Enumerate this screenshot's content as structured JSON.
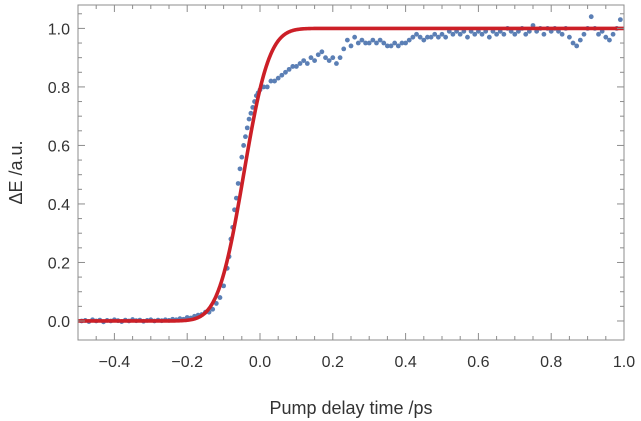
{
  "chart_data": {
    "type": "scatter",
    "title": "",
    "xlabel": "Pump delay time /ps",
    "ylabel": "ΔE /a.u.",
    "xlim": [
      -0.5,
      1.0
    ],
    "ylim": [
      -0.065,
      1.08
    ],
    "grid": false,
    "x_ticks": [
      -0.4,
      -0.2,
      0.0,
      0.2,
      0.4,
      0.6,
      0.8,
      1.0
    ],
    "x_tick_labels": [
      "−0.4",
      "−0.2",
      "0.0",
      "0.2",
      "0.4",
      "0.6",
      "0.8",
      "1.0"
    ],
    "y_ticks": [
      0.0,
      0.2,
      0.4,
      0.6,
      0.8,
      1.0
    ],
    "y_tick_labels": [
      "0.0",
      "0.2",
      "0.4",
      "0.6",
      "0.8",
      "1.0"
    ],
    "series": [
      {
        "kind": "scatter",
        "color": "#5b7fb5",
        "points": [
          [
            -0.49,
            0.0
          ],
          [
            -0.48,
            0.002
          ],
          [
            -0.47,
            -0.002
          ],
          [
            -0.46,
            0.004
          ],
          [
            -0.45,
            0.0
          ],
          [
            -0.44,
            0.003
          ],
          [
            -0.43,
            -0.003
          ],
          [
            -0.42,
            0.002
          ],
          [
            -0.41,
            0.0
          ],
          [
            -0.4,
            0.004
          ],
          [
            -0.39,
            0.001
          ],
          [
            -0.38,
            -0.002
          ],
          [
            -0.37,
            0.003
          ],
          [
            -0.36,
            0.0
          ],
          [
            -0.35,
            0.005
          ],
          [
            -0.34,
            0.001
          ],
          [
            -0.33,
            0.003
          ],
          [
            -0.32,
            -0.001
          ],
          [
            -0.31,
            0.002
          ],
          [
            -0.3,
            0.004
          ],
          [
            -0.29,
            0.0
          ],
          [
            -0.28,
            0.003
          ],
          [
            -0.27,
            0.001
          ],
          [
            -0.26,
            0.004
          ],
          [
            -0.25,
            0.002
          ],
          [
            -0.24,
            0.006
          ],
          [
            -0.23,
            0.004
          ],
          [
            -0.22,
            0.008
          ],
          [
            -0.21,
            0.006
          ],
          [
            -0.2,
            0.012
          ],
          [
            -0.19,
            0.01
          ],
          [
            -0.18,
            0.016
          ],
          [
            -0.17,
            0.02
          ],
          [
            -0.16,
            0.022
          ],
          [
            -0.15,
            0.03
          ],
          [
            -0.14,
            0.03
          ],
          [
            -0.13,
            0.04
          ],
          [
            -0.12,
            0.06
          ],
          [
            -0.11,
            0.08
          ],
          [
            -0.1,
            0.12
          ],
          [
            -0.09,
            0.18
          ],
          [
            -0.085,
            0.22
          ],
          [
            -0.08,
            0.28
          ],
          [
            -0.075,
            0.32
          ],
          [
            -0.07,
            0.38
          ],
          [
            -0.065,
            0.42
          ],
          [
            -0.06,
            0.47
          ],
          [
            -0.055,
            0.52
          ],
          [
            -0.05,
            0.56
          ],
          [
            -0.045,
            0.6
          ],
          [
            -0.04,
            0.63
          ],
          [
            -0.035,
            0.66
          ],
          [
            -0.03,
            0.69
          ],
          [
            -0.025,
            0.71
          ],
          [
            -0.02,
            0.73
          ],
          [
            -0.015,
            0.75
          ],
          [
            -0.01,
            0.77
          ],
          [
            -0.005,
            0.78
          ],
          [
            0.0,
            0.79
          ],
          [
            0.01,
            0.8
          ],
          [
            0.02,
            0.8
          ],
          [
            0.03,
            0.82
          ],
          [
            0.04,
            0.82
          ],
          [
            0.05,
            0.83
          ],
          [
            0.06,
            0.84
          ],
          [
            0.07,
            0.85
          ],
          [
            0.08,
            0.86
          ],
          [
            0.09,
            0.87
          ],
          [
            0.1,
            0.87
          ],
          [
            0.11,
            0.88
          ],
          [
            0.12,
            0.89
          ],
          [
            0.13,
            0.88
          ],
          [
            0.14,
            0.9
          ],
          [
            0.15,
            0.89
          ],
          [
            0.16,
            0.91
          ],
          [
            0.17,
            0.92
          ],
          [
            0.18,
            0.9
          ],
          [
            0.19,
            0.89
          ],
          [
            0.2,
            0.9
          ],
          [
            0.21,
            0.88
          ],
          [
            0.22,
            0.9
          ],
          [
            0.23,
            0.93
          ],
          [
            0.24,
            0.96
          ],
          [
            0.25,
            0.94
          ],
          [
            0.26,
            0.97
          ],
          [
            0.27,
            0.95
          ],
          [
            0.28,
            0.96
          ],
          [
            0.29,
            0.95
          ],
          [
            0.3,
            0.95
          ],
          [
            0.31,
            0.96
          ],
          [
            0.32,
            0.95
          ],
          [
            0.33,
            0.96
          ],
          [
            0.34,
            0.95
          ],
          [
            0.35,
            0.94
          ],
          [
            0.36,
            0.94
          ],
          [
            0.37,
            0.95
          ],
          [
            0.38,
            0.94
          ],
          [
            0.39,
            0.95
          ],
          [
            0.4,
            0.95
          ],
          [
            0.41,
            0.96
          ],
          [
            0.42,
            0.97
          ],
          [
            0.43,
            0.98
          ],
          [
            0.44,
            0.97
          ],
          [
            0.45,
            0.96
          ],
          [
            0.46,
            0.97
          ],
          [
            0.47,
            0.97
          ],
          [
            0.48,
            0.98
          ],
          [
            0.49,
            0.97
          ],
          [
            0.5,
            0.98
          ],
          [
            0.51,
            0.97
          ],
          [
            0.52,
            0.99
          ],
          [
            0.53,
            0.98
          ],
          [
            0.54,
            0.99
          ],
          [
            0.55,
            0.98
          ],
          [
            0.56,
            0.99
          ],
          [
            0.57,
            0.97
          ],
          [
            0.58,
            0.99
          ],
          [
            0.59,
            0.98
          ],
          [
            0.6,
            0.99
          ],
          [
            0.61,
            0.98
          ],
          [
            0.62,
            0.99
          ],
          [
            0.63,
            0.97
          ],
          [
            0.64,
            0.99
          ],
          [
            0.65,
            0.98
          ],
          [
            0.66,
            0.99
          ],
          [
            0.67,
            0.98
          ],
          [
            0.68,
            1.0
          ],
          [
            0.69,
            0.99
          ],
          [
            0.7,
            0.98
          ],
          [
            0.71,
            0.99
          ],
          [
            0.72,
            1.0
          ],
          [
            0.73,
            0.98
          ],
          [
            0.74,
            0.99
          ],
          [
            0.75,
            1.01
          ],
          [
            0.76,
            0.99
          ],
          [
            0.77,
            1.0
          ],
          [
            0.78,
            0.98
          ],
          [
            0.79,
            1.0
          ],
          [
            0.8,
            0.99
          ],
          [
            0.81,
            1.0
          ],
          [
            0.82,
            0.99
          ],
          [
            0.83,
            0.98
          ],
          [
            0.84,
            1.0
          ],
          [
            0.85,
            0.97
          ],
          [
            0.86,
            0.95
          ],
          [
            0.87,
            0.94
          ],
          [
            0.88,
            0.96
          ],
          [
            0.89,
            0.98
          ],
          [
            0.9,
            1.0
          ],
          [
            0.91,
            1.04
          ],
          [
            0.92,
            1.0
          ],
          [
            0.93,
            0.98
          ],
          [
            0.94,
            0.99
          ],
          [
            0.95,
            0.97
          ],
          [
            0.96,
            0.96
          ],
          [
            0.97,
            0.98
          ],
          [
            0.98,
            1.0
          ],
          [
            0.99,
            1.03
          ]
        ]
      },
      {
        "kind": "line",
        "color": "#cc1f27",
        "model": "error-function step",
        "center": -0.045,
        "width": 0.078,
        "x_range": [
          -0.5,
          1.0
        ]
      }
    ]
  }
}
